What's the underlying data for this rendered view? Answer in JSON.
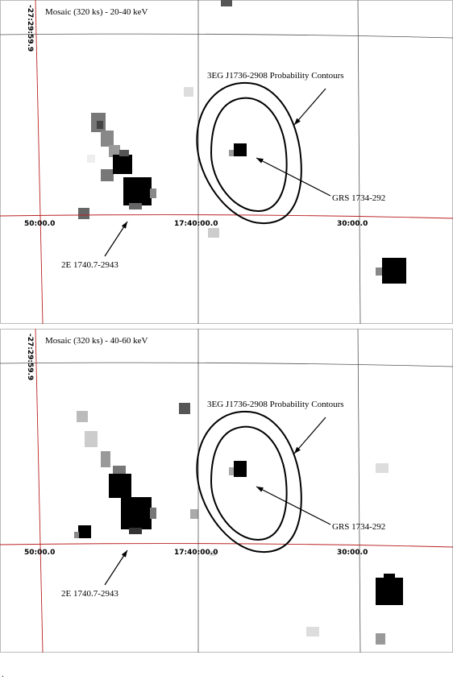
{
  "panels": [
    {
      "title": "Mosaic (320 ks) - 20-40 keV",
      "dec_label": "-27:29:59.9",
      "ra_labels": [
        "50:00.0",
        "17:40:00.0",
        "30:00.0"
      ],
      "annotations": [
        "3EG J1736-2908 Probability Contours",
        "GRS 1734-292",
        "2E 1740.7-2943"
      ]
    },
    {
      "title": "Mosaic (320 ks) - 40-60 keV",
      "dec_label": "-27:29:59.9",
      "ra_labels": [
        "50:00.0",
        "17:40:00.0",
        "30:00.0"
      ],
      "annotations": [
        "3EG J1736-2908 Probability Contours",
        "GRS 1734-292",
        "2E 1740.7-2943"
      ]
    }
  ],
  "footer": "."
}
